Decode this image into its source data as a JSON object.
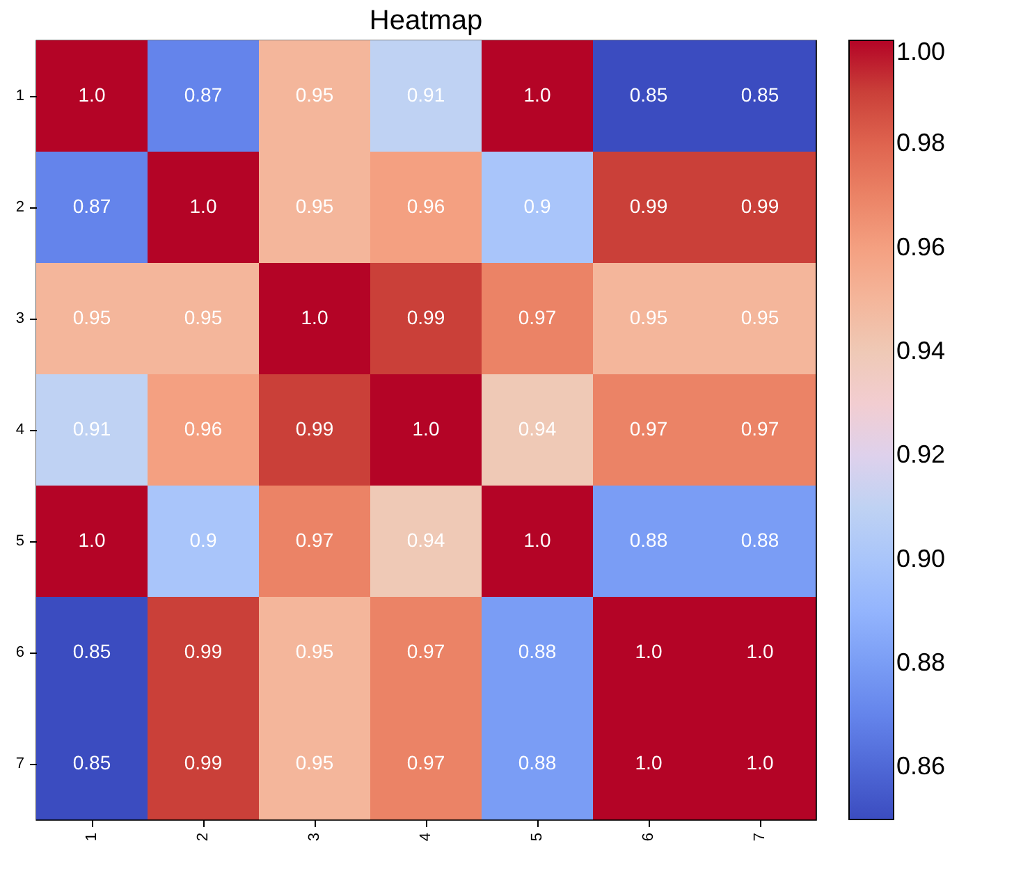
{
  "chart_data": {
    "type": "heatmap",
    "title": "Heatmap",
    "categories": [
      "1",
      "2",
      "3",
      "4",
      "5",
      "6",
      "7"
    ],
    "y_categories": [
      "1",
      "2",
      "3",
      "4",
      "5",
      "6",
      "7"
    ],
    "cells": [
      [
        1.0,
        0.87,
        0.95,
        0.91,
        1.0,
        0.85,
        0.85
      ],
      [
        0.87,
        1.0,
        0.95,
        0.96,
        0.9,
        0.99,
        0.99
      ],
      [
        0.95,
        0.95,
        1.0,
        0.99,
        0.97,
        0.95,
        0.95
      ],
      [
        0.91,
        0.96,
        0.99,
        1.0,
        0.94,
        0.97,
        0.97
      ],
      [
        1.0,
        0.9,
        0.97,
        0.94,
        1.0,
        0.88,
        0.88
      ],
      [
        0.85,
        0.99,
        0.95,
        0.97,
        0.88,
        1.0,
        1.0
      ],
      [
        0.85,
        0.99,
        0.95,
        0.97,
        0.88,
        1.0,
        1.0
      ]
    ],
    "cell_labels": [
      [
        "1.0",
        "0.87",
        "0.95",
        "0.91",
        "1.0",
        "0.85",
        "0.85"
      ],
      [
        "0.87",
        "1.0",
        "0.95",
        "0.96",
        "0.9",
        "0.99",
        "0.99"
      ],
      [
        "0.95",
        "0.95",
        "1.0",
        "0.99",
        "0.97",
        "0.95",
        "0.95"
      ],
      [
        "0.91",
        "0.96",
        "0.99",
        "1.0",
        "0.94",
        "0.97",
        "0.97"
      ],
      [
        "1.0",
        "0.9",
        "0.97",
        "0.94",
        "1.0",
        "0.88",
        "0.88"
      ],
      [
        "0.85",
        "0.99",
        "0.95",
        "0.97",
        "0.88",
        "1.0",
        "1.0"
      ],
      [
        "0.85",
        "0.99",
        "0.95",
        "0.97",
        "0.88",
        "1.0",
        "1.0"
      ]
    ],
    "clim": [
      0.85,
      1.0
    ],
    "cticks": [
      0.86,
      0.88,
      {
        "value": 0.9,
        "label": "0.90"
      },
      0.92,
      0.94,
      0.96,
      0.98,
      {
        "value": 1.0,
        "label": "1.00"
      }
    ]
  }
}
